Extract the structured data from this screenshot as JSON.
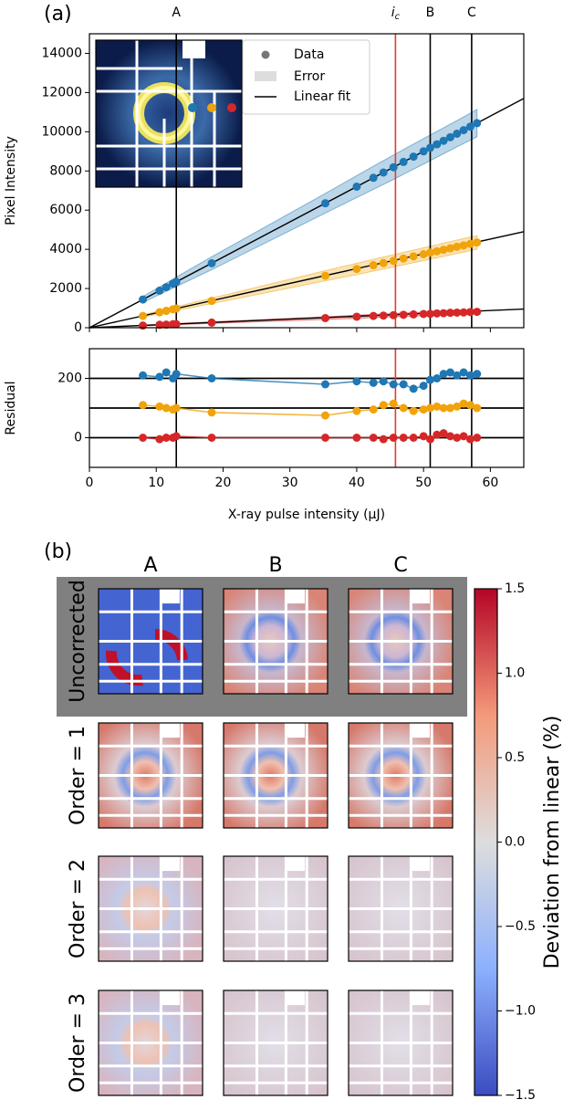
{
  "chart_data": [
    {
      "type": "scatter",
      "panel_label": "(a)",
      "ylabel": "Pixel Intensity",
      "xlim": [
        0,
        65
      ],
      "ylim": [
        0,
        15000
      ],
      "yticks": [
        0,
        2000,
        4000,
        6000,
        8000,
        10000,
        12000,
        14000
      ],
      "x": [
        8,
        10.5,
        11.5,
        12.5,
        13,
        18.3,
        35.3,
        40,
        42.5,
        44,
        45.5,
        47,
        48.5,
        50,
        51,
        52,
        53,
        54,
        55,
        56,
        57,
        58
      ],
      "series": [
        {
          "color": "#1f77b4",
          "values": [
            1440,
            1890,
            2070,
            2250,
            2340,
            3290,
            6350,
            7200,
            7650,
            7920,
            8190,
            8460,
            8730,
            9000,
            9180,
            9360,
            9540,
            9720,
            9900,
            10080,
            10260,
            10440
          ],
          "error": [
            150,
            190,
            210,
            230,
            240,
            330,
            500,
            560,
            590,
            610,
            620,
            630,
            640,
            650,
            650,
            660,
            660,
            670,
            670,
            680,
            690,
            700
          ],
          "fit": {
            "x": [
              0,
              65
            ],
            "values": [
              0,
              11700
            ]
          }
        },
        {
          "color": "#f0a30a",
          "values": [
            600,
            790,
            860,
            940,
            980,
            1370,
            2650,
            3000,
            3190,
            3300,
            3410,
            3530,
            3640,
            3750,
            3830,
            3900,
            3980,
            4050,
            4130,
            4200,
            4280,
            4350
          ],
          "error": [
            60,
            80,
            90,
            90,
            100,
            140,
            260,
            290,
            300,
            310,
            310,
            320,
            320,
            330,
            330,
            330,
            340,
            340,
            340,
            350,
            350,
            350
          ],
          "fit": {
            "x": [
              0,
              65
            ],
            "values": [
              0,
              4900
            ]
          }
        },
        {
          "color": "#d62728",
          "values": [
            110,
            150,
            160,
            180,
            180,
            260,
            490,
            560,
            600,
            620,
            640,
            660,
            680,
            700,
            710,
            730,
            740,
            760,
            770,
            780,
            800,
            810
          ],
          "error": [
            20,
            20,
            20,
            30,
            30,
            40,
            70,
            80,
            80,
            80,
            80,
            90,
            90,
            90,
            90,
            90,
            90,
            100,
            100,
            100,
            100,
            100
          ],
          "fit": {
            "x": [
              0,
              65
            ],
            "values": [
              0,
              950
            ]
          }
        }
      ],
      "vlines": [
        {
          "x": 13,
          "label": "A",
          "color": "#000000"
        },
        {
          "x": 45.8,
          "label": "i",
          "label_sub": "c",
          "color": "#e8372a"
        },
        {
          "x": 51,
          "label": "B",
          "color": "#000000"
        },
        {
          "x": 57.2,
          "label": "C",
          "color": "#000000"
        }
      ],
      "legend": {
        "entries": [
          "Data",
          "Error",
          "Linear fit"
        ],
        "position": "upper center"
      }
    },
    {
      "type": "scatter",
      "ylabel": "Residual",
      "xlabel": "X-ray pulse intensity (μJ)",
      "xlim": [
        0,
        65
      ],
      "xticks": [
        0,
        10,
        20,
        30,
        40,
        50,
        60
      ],
      "ylim": [
        -100,
        300
      ],
      "yticks": [
        0,
        200
      ],
      "hlines": [
        0,
        100,
        200
      ],
      "x": [
        8,
        10.5,
        11.5,
        12.5,
        13,
        18.3,
        35.3,
        40,
        42.5,
        44,
        45.5,
        47,
        48.5,
        50,
        51,
        52,
        53,
        54,
        55,
        56,
        57,
        58
      ],
      "series": [
        {
          "color": "#1f77b4",
          "values": [
            210,
            205,
            220,
            200,
            215,
            200,
            180,
            190,
            185,
            190,
            180,
            180,
            165,
            175,
            195,
            200,
            215,
            220,
            210,
            220,
            210,
            215
          ]
        },
        {
          "color": "#f0a30a",
          "values": [
            110,
            105,
            100,
            95,
            100,
            85,
            75,
            90,
            95,
            110,
            115,
            100,
            90,
            95,
            100,
            105,
            100,
            100,
            105,
            115,
            110,
            100
          ]
        },
        {
          "color": "#d62728",
          "values": [
            0,
            -5,
            0,
            0,
            5,
            0,
            0,
            0,
            0,
            -5,
            0,
            0,
            0,
            5,
            -5,
            10,
            15,
            5,
            0,
            5,
            -5,
            0
          ]
        }
      ],
      "vlines": [
        {
          "x": 13,
          "color": "#000000"
        },
        {
          "x": 45.8,
          "color": "#e8372a"
        },
        {
          "x": 51,
          "color": "#000000"
        },
        {
          "x": 57.2,
          "color": "#000000"
        }
      ]
    }
  ],
  "panel_b": {
    "label": "(b)",
    "columns": [
      "A",
      "B",
      "C"
    ],
    "rows": [
      "Uncorrected",
      "Order = 1",
      "Order = 2",
      "Order = 3"
    ],
    "colorbar": {
      "label": "Deviation from linear (%)",
      "lim": [
        -1.5,
        1.5
      ],
      "ticks": [
        1.5,
        {
          "value": 1,
          "label": "1.0"
        },
        0.5,
        {
          "value": 0,
          "label": "0.0"
        },
        {
          "value": -0.5,
          "label": "−0.5"
        },
        {
          "value": -1,
          "label": "−1.0"
        },
        {
          "value": -1.5,
          "label": "−1.5"
        }
      ]
    }
  }
}
